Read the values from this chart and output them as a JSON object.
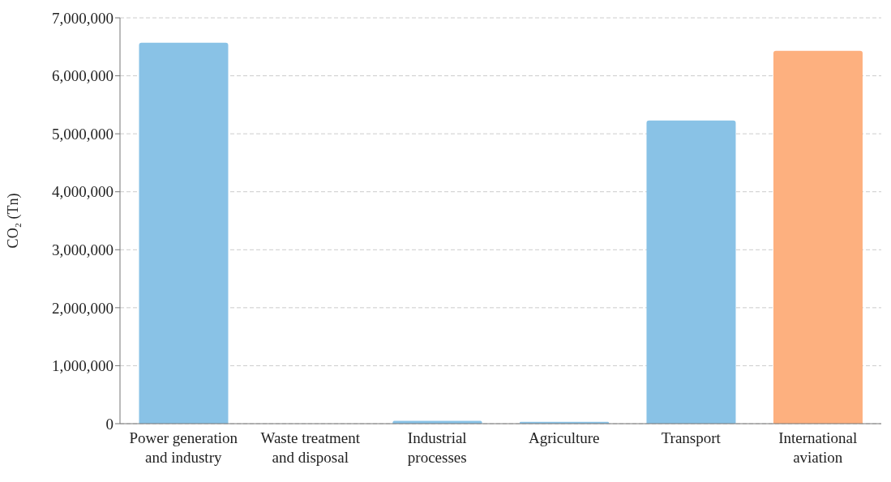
{
  "chart_data": {
    "type": "bar",
    "ylabel": "CO₂ (Tn)",
    "categories": [
      "Power generation\nand industry",
      "Waste treatment\nand disposal",
      "Industrial\nprocesses",
      "Agriculture",
      "Transport",
      "International\naviation"
    ],
    "values": [
      6570000,
      0,
      50000,
      30000,
      5230000,
      6430000
    ],
    "colors": [
      "#89c2e6",
      "#89c2e6",
      "#89c2e6",
      "#89c2e6",
      "#89c2e6",
      "#fdb07f"
    ],
    "ylim": [
      0,
      7000000
    ],
    "yticks": [
      0,
      {
        "value": 1000000,
        "label": "1,000,000"
      },
      {
        "value": 2000000,
        "label": "2,000,000"
      },
      {
        "value": 3000000,
        "label": "3,000,000"
      },
      {
        "value": 4000000,
        "label": "4,000,000"
      },
      {
        "value": 5000000,
        "label": "5,000,000"
      },
      {
        "value": 6000000,
        "label": "6,000,000"
      },
      {
        "value": 7000000,
        "label": "7,000,000"
      }
    ],
    "grid": "y"
  }
}
